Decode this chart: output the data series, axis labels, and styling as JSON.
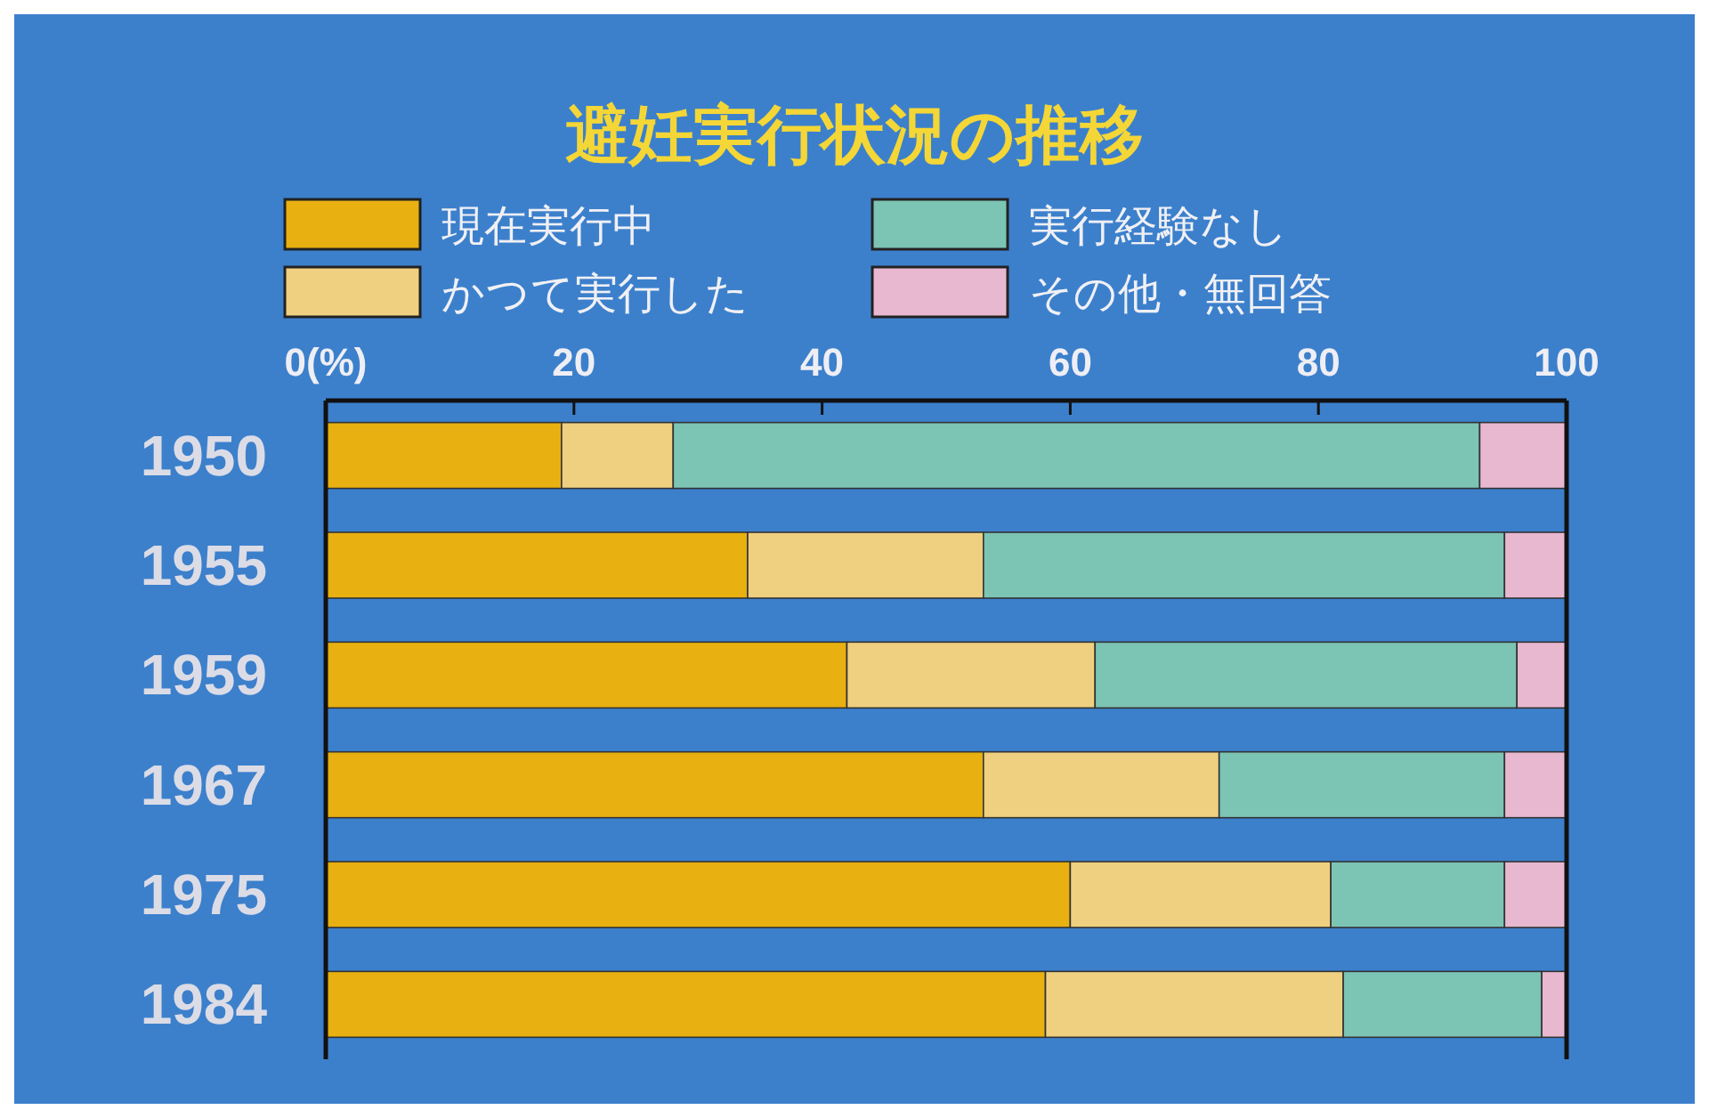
{
  "chart_data": {
    "type": "bar",
    "orientation": "horizontal",
    "stacked": true,
    "title": "避妊実行状況の推移",
    "categories": [
      "1950",
      "1955",
      "1959",
      "1967",
      "1975",
      "1984"
    ],
    "series": [
      {
        "name": "現在実行中",
        "color": "#e8b010",
        "values": [
          19,
          34,
          42,
          53,
          60,
          58
        ]
      },
      {
        "name": "かつて実行した",
        "color": "#efd080",
        "values": [
          9,
          19,
          20,
          19,
          21,
          24
        ]
      },
      {
        "name": "実行経験なし",
        "color": "#7cc4b4",
        "values": [
          65,
          42,
          34,
          23,
          14,
          16
        ]
      },
      {
        "name": "その他・無回答",
        "color": "#e8b8d0",
        "values": [
          7,
          5,
          4,
          5,
          5,
          2
        ]
      }
    ],
    "xlim": [
      0,
      100
    ],
    "xticks": [
      {
        "value": 0,
        "label": "0(%)"
      },
      20,
      40,
      60,
      80,
      100
    ],
    "grid": false,
    "legend": "top"
  }
}
